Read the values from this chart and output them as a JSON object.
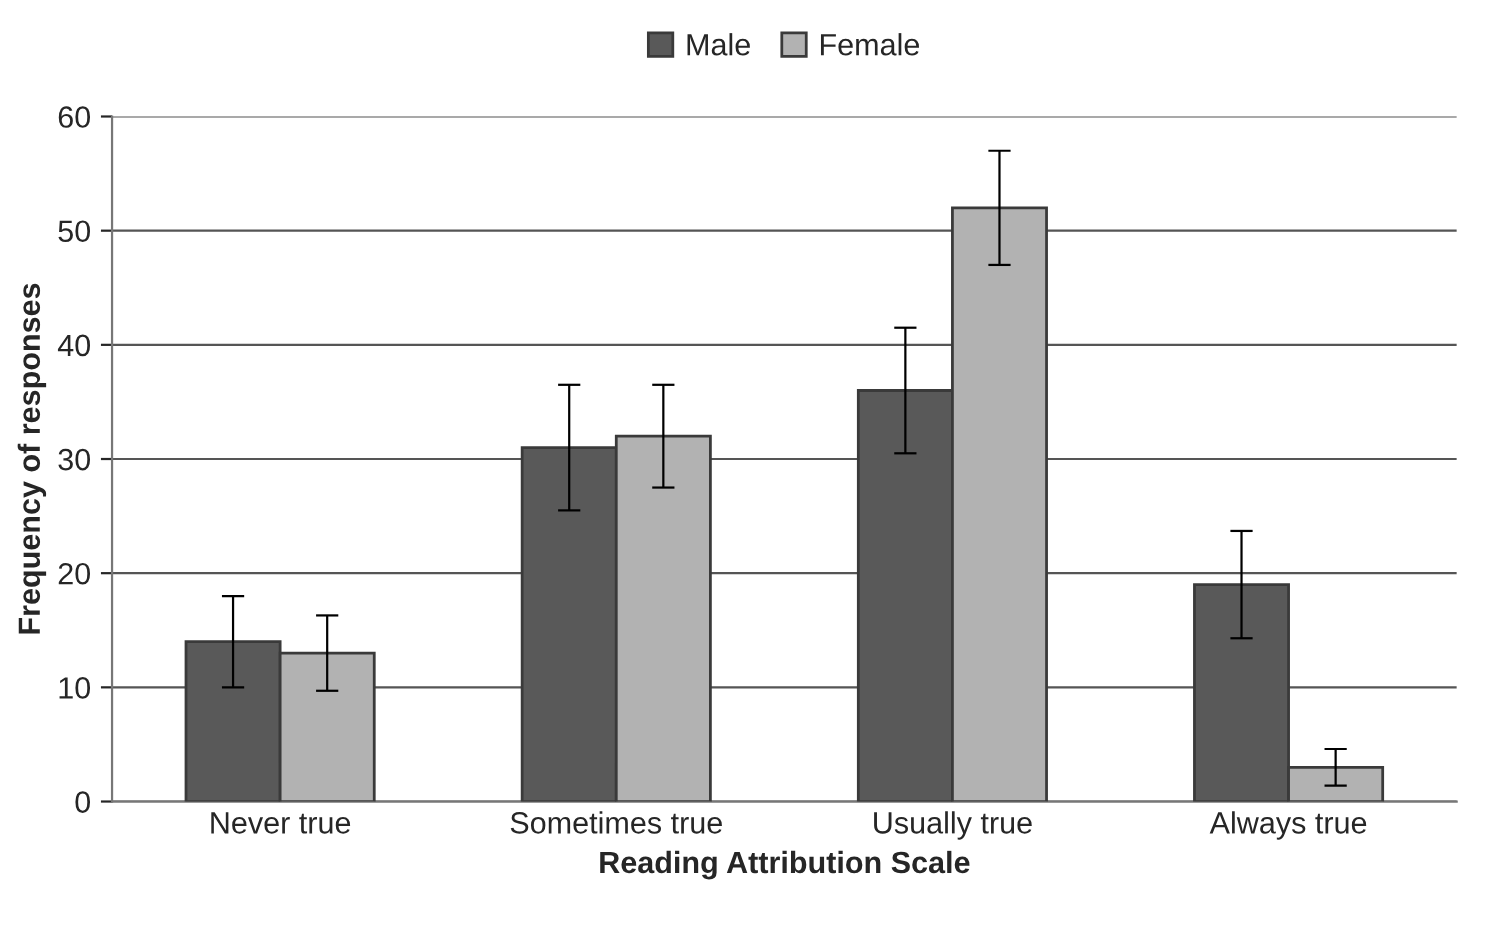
{
  "chart_data": {
    "type": "bar",
    "xlabel": "Reading Attribution Scale",
    "ylabel": "Frequency of responses",
    "categories": [
      "Never true",
      "Sometimes true",
      "Usually true",
      "Always true"
    ],
    "series": [
      {
        "name": "Male",
        "color": "#595959",
        "values": [
          14,
          31,
          36,
          19
        ],
        "errors": [
          4,
          5.5,
          5.5,
          4.7
        ]
      },
      {
        "name": "Female",
        "color": "#b2b2b2",
        "values": [
          13,
          32,
          52,
          3
        ],
        "errors": [
          3.3,
          4.5,
          5,
          1.6
        ]
      }
    ],
    "ylim": [
      0,
      60
    ],
    "yticks": [
      0,
      10,
      20,
      30,
      40,
      50,
      60
    ],
    "grid": "y",
    "legend": "top"
  }
}
